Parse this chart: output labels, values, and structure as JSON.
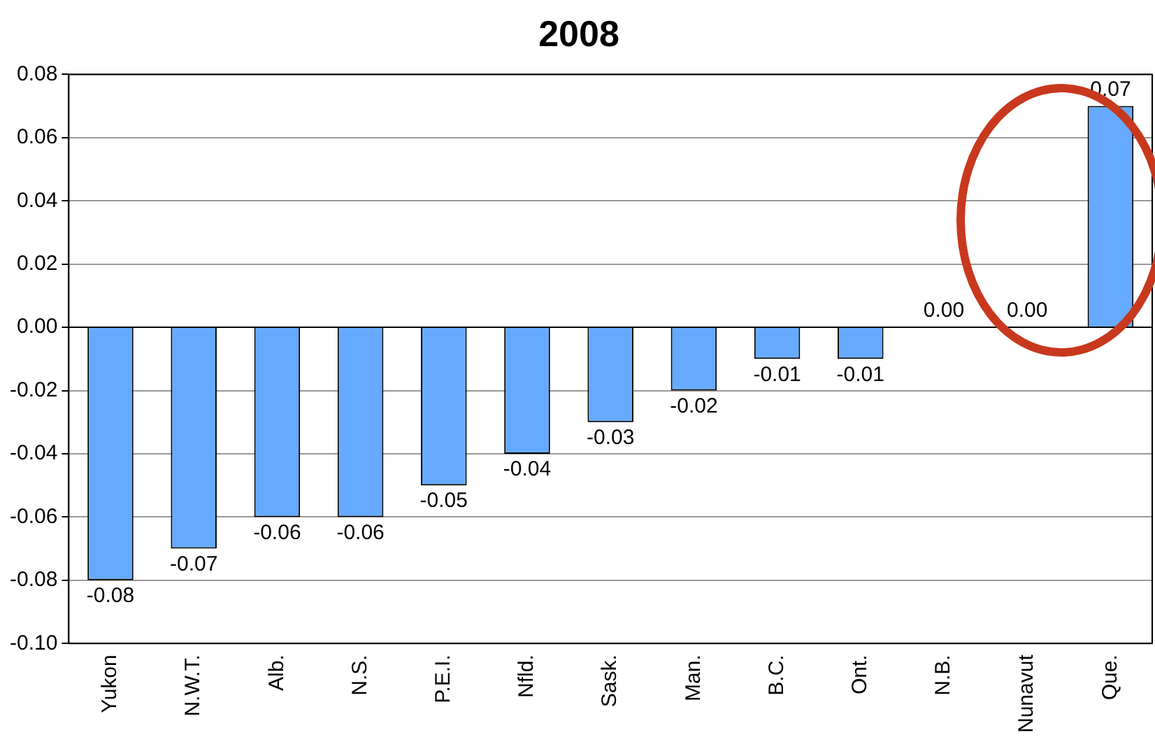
{
  "chart_data": {
    "type": "bar",
    "title": "2008",
    "categories": [
      "Yukon",
      "N.W.T.",
      "Alb.",
      "N.S.",
      "P.E.I.",
      "Nfld.",
      "Sask.",
      "Man.",
      "B.C.",
      "Ont.",
      "N.B.",
      "Nunavut",
      "Que."
    ],
    "values": [
      -0.08,
      -0.07,
      -0.06,
      -0.06,
      -0.05,
      -0.04,
      -0.03,
      -0.02,
      -0.01,
      -0.01,
      0,
      0,
      0.07
    ],
    "value_labels": [
      "-0.08",
      "-0.07",
      "-0.06",
      "-0.06",
      "-0.05",
      "-0.04",
      "-0.03",
      "-0.02",
      "-0.01",
      "-0.01",
      "0.00",
      "0.00",
      "0.07"
    ],
    "color": "#66aaff",
    "ylim": [
      -0.1,
      0.08
    ],
    "yticks": [
      {
        "value": -0.1,
        "label": "-0.10"
      },
      {
        "value": -0.08,
        "label": "-0.08"
      },
      {
        "value": -0.06,
        "label": "-0.06"
      },
      {
        "value": -0.04,
        "label": "-0.04"
      },
      {
        "value": -0.02,
        "label": "-0.02"
      },
      {
        "value": 0,
        "label": "0.00"
      },
      {
        "value": 0.02,
        "label": "0.02"
      },
      {
        "value": 0.04,
        "label": "0.04"
      },
      {
        "value": 0.06,
        "label": "0.06"
      },
      {
        "value": 0.08,
        "label": "0.08"
      }
    ],
    "grid": "y"
  }
}
